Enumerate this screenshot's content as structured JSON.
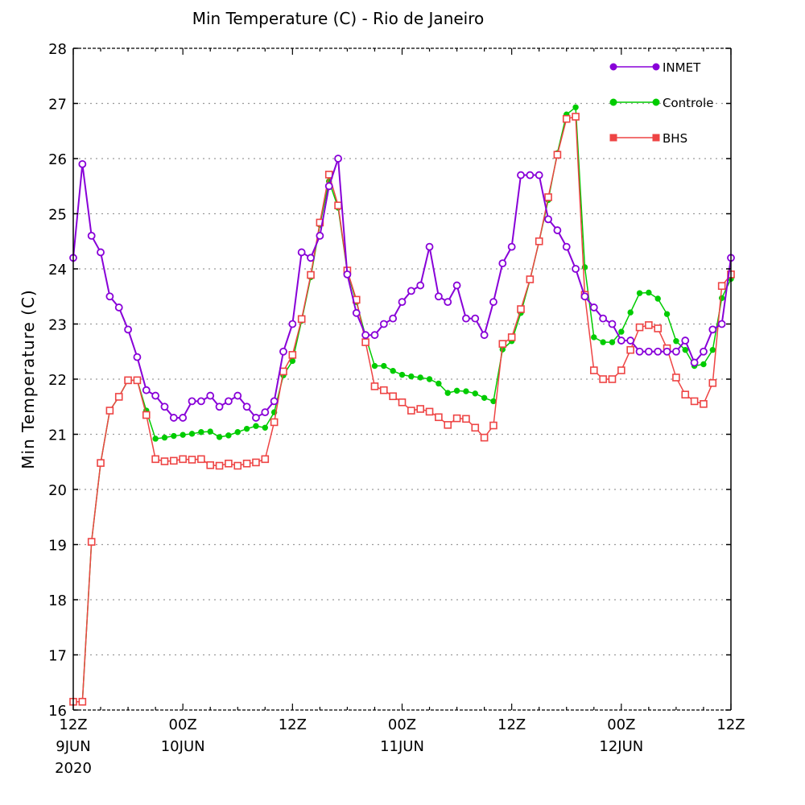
{
  "chart_data": {
    "type": "line",
    "title": "Min Temperature (C)  - Rio de Janeiro",
    "xlabel": "",
    "ylabel": "Min Temperature (C)",
    "ylim": [
      16,
      28
    ],
    "yticks": [
      "16",
      "17",
      "18",
      "19",
      "20",
      "21",
      "22",
      "23",
      "24",
      "25",
      "26",
      "27",
      "28"
    ],
    "xlim_hours": [
      0,
      72
    ],
    "x_step_hours": 1,
    "x_tick_labels": [
      {
        "hour": 0,
        "lines": [
          "12Z",
          "9JUN",
          "2020"
        ]
      },
      {
        "hour": 12,
        "lines": [
          "00Z",
          "10JUN"
        ]
      },
      {
        "hour": 24,
        "lines": [
          "12Z"
        ]
      },
      {
        "hour": 36,
        "lines": [
          "00Z",
          "11JUN"
        ]
      },
      {
        "hour": 48,
        "lines": [
          "12Z"
        ]
      },
      {
        "hour": 60,
        "lines": [
          "00Z",
          "12JUN"
        ]
      },
      {
        "hour": 72,
        "lines": [
          "12Z"
        ]
      }
    ],
    "legend_position": "top-right",
    "series": [
      {
        "name": "INMET",
        "color": "#8800d8",
        "marker": "open-circle",
        "values": [
          24.2,
          25.9,
          24.6,
          24.3,
          23.5,
          23.3,
          22.9,
          22.4,
          21.8,
          21.7,
          21.5,
          21.3,
          21.3,
          21.6,
          21.6,
          21.7,
          21.5,
          21.6,
          21.7,
          21.5,
          21.3,
          21.4,
          21.6,
          22.5,
          23.0,
          24.3,
          24.2,
          24.6,
          25.5,
          26.0,
          23.9,
          23.2,
          22.8,
          22.8,
          23.0,
          23.1,
          23.4,
          23.6,
          23.7,
          24.4,
          23.5,
          23.4,
          23.7,
          23.1,
          23.1,
          22.8,
          23.4,
          24.1,
          24.4,
          25.7,
          25.7,
          25.7,
          24.9,
          24.7,
          24.4,
          24.0,
          23.5,
          23.3,
          23.1,
          23.0,
          22.7,
          22.7,
          22.5,
          22.5,
          22.5,
          22.5,
          22.5,
          22.7,
          22.3,
          22.5,
          22.9,
          23.0,
          24.2
        ]
      },
      {
        "name": "Controle",
        "color": "#00cc00",
        "marker": "filled-circle",
        "values": [
          16.15,
          16.15,
          19.05,
          20.48,
          21.43,
          21.68,
          21.98,
          21.98,
          21.43,
          20.92,
          20.94,
          20.97,
          20.99,
          21.01,
          21.04,
          21.05,
          20.95,
          20.98,
          21.04,
          21.1,
          21.15,
          21.12,
          21.4,
          22.07,
          22.33,
          23.06,
          23.85,
          24.8,
          25.59,
          25.11,
          23.95,
          23.4,
          22.78,
          22.24,
          22.24,
          22.15,
          22.08,
          22.05,
          22.03,
          22.0,
          21.92,
          21.75,
          21.79,
          21.78,
          21.74,
          21.66,
          21.6,
          22.54,
          22.69,
          23.2,
          23.8,
          24.5,
          25.25,
          26.1,
          26.8,
          26.93,
          24.03,
          22.76,
          22.67,
          22.67,
          22.86,
          23.21,
          23.56,
          23.57,
          23.46,
          23.18,
          22.69,
          22.53,
          22.24,
          22.27,
          22.53,
          23.47,
          23.82
        ]
      },
      {
        "name": "BHS",
        "color": "#ee4444",
        "marker": "open-square",
        "values": [
          16.15,
          16.15,
          19.05,
          20.48,
          21.43,
          21.68,
          21.98,
          21.98,
          21.35,
          20.55,
          20.51,
          20.52,
          20.55,
          20.54,
          20.55,
          20.44,
          20.43,
          20.47,
          20.43,
          20.47,
          20.49,
          20.55,
          21.22,
          22.14,
          22.44,
          23.09,
          23.89,
          24.84,
          25.71,
          25.15,
          23.97,
          23.44,
          22.67,
          21.87,
          21.8,
          21.69,
          21.58,
          21.43,
          21.46,
          21.41,
          21.31,
          21.17,
          21.29,
          21.28,
          21.12,
          20.94,
          21.16,
          22.64,
          22.76,
          23.27,
          23.81,
          24.5,
          25.3,
          26.07,
          26.72,
          26.76,
          23.53,
          22.16,
          22.0,
          22.0,
          22.16,
          22.53,
          22.94,
          22.98,
          22.92,
          22.56,
          22.03,
          21.72,
          21.6,
          21.55,
          21.93,
          23.69,
          23.9
        ]
      }
    ]
  }
}
